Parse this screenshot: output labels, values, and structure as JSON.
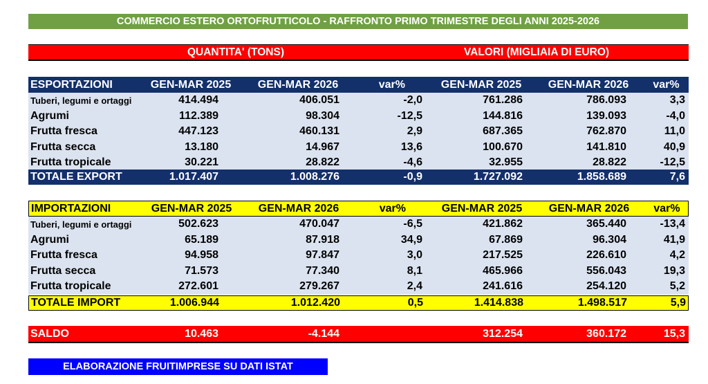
{
  "title": "COMMERCIO ESTERO ORTOFRUTTICOLO - RAFFRONTO PRIMO TRIMESTRE DEGLI ANNI 2025-2026",
  "units": {
    "quantity": "QUANTITA' (TONS)",
    "value": "VALORI (MIGLIAIA DI EURO)"
  },
  "export": {
    "header": [
      "ESPORTAZIONI",
      "GEN-MAR 2025",
      "GEN-MAR 2026",
      "var%",
      "GEN-MAR 2025",
      "GEN-MAR 2026",
      "var%"
    ],
    "rows": [
      [
        "Tuberi, legumi e ortaggi",
        "414.494",
        "406.051",
        "-2,0",
        "761.286",
        "786.093",
        "3,3"
      ],
      [
        "Agrumi",
        "112.389",
        "98.304",
        "-12,5",
        "144.816",
        "139.093",
        "-4,0"
      ],
      [
        "Frutta fresca",
        "447.123",
        "460.131",
        "2,9",
        "687.365",
        "762.870",
        "11,0"
      ],
      [
        "Frutta secca",
        "13.180",
        "14.967",
        "13,6",
        "100.670",
        "141.810",
        "40,9"
      ],
      [
        "Frutta tropicale",
        "30.221",
        "28.822",
        "-4,6",
        "32.955",
        "28.822",
        "-12,5"
      ]
    ],
    "total": [
      "TOTALE EXPORT",
      "1.017.407",
      "1.008.276",
      "-0,9",
      "1.727.092",
      "1.858.689",
      "7,6"
    ]
  },
  "import": {
    "header": [
      "IMPORTAZIONI",
      "GEN-MAR 2025",
      "GEN-MAR 2026",
      "var%",
      "GEN-MAR 2025",
      "GEN-MAR 2026",
      "var%"
    ],
    "rows": [
      [
        "Tuberi, legumi e ortaggi",
        "502.623",
        "470.047",
        "-6,5",
        "421.862",
        "365.440",
        "-13,4"
      ],
      [
        "Agrumi",
        "65.189",
        "87.918",
        "34,9",
        "67.869",
        "96.304",
        "41,9"
      ],
      [
        "Frutta fresca",
        "94.958",
        "97.847",
        "3,0",
        "217.525",
        "226.610",
        "4,2"
      ],
      [
        "Frutta secca",
        "71.573",
        "77.340",
        "8,1",
        "465.966",
        "556.043",
        "19,3"
      ],
      [
        "Frutta tropicale",
        "272.601",
        "279.267",
        "2,4",
        "241.616",
        "254.120",
        "5,2"
      ]
    ],
    "total": [
      "TOTALE IMPORT",
      "1.006.944",
      "1.012.420",
      "0,5",
      "1.414.838",
      "1.498.517",
      "5,9"
    ]
  },
  "saldo": [
    "SALDO",
    "10.463",
    "-4.144",
    "",
    "312.254",
    "360.172",
    "15,3"
  ],
  "source": "ELABORAZIONE FRUITIMPRESE SU DATI ISTAT",
  "colors": {
    "title_bg": "#70a043",
    "units_bg": "#ff0000",
    "export_bg": "#13306b",
    "import_bg": "#ffff00",
    "rows_bg": "#dbe3f0",
    "saldo_bg": "#ff0000",
    "source_bg": "#0000ff"
  }
}
